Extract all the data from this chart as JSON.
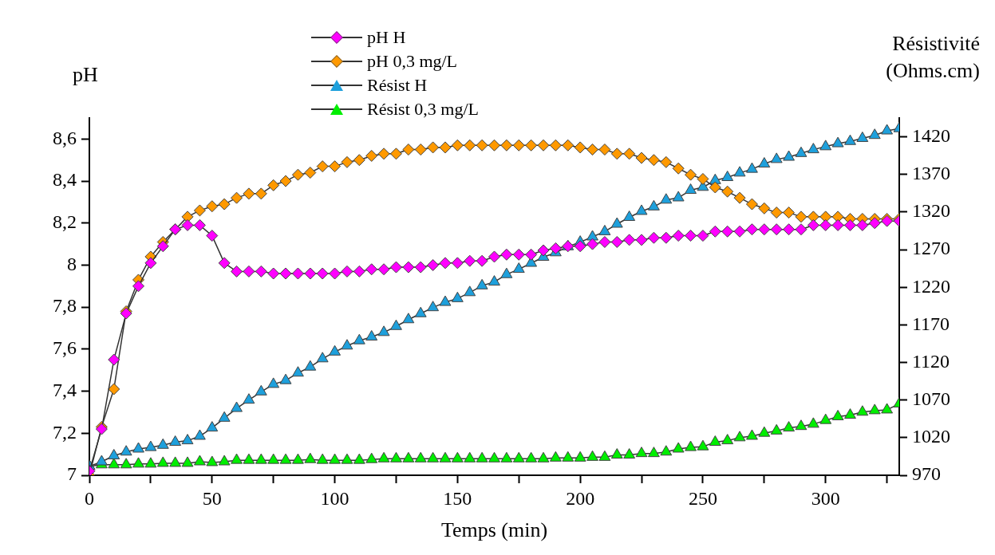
{
  "chart_data": {
    "type": "line",
    "xlabel": "Temps (min)",
    "ylabel": "pH",
    "y2label": "Résistivité (Ohms.cm)",
    "x": [
      0,
      5,
      10,
      15,
      20,
      25,
      30,
      35,
      40,
      45,
      50,
      55,
      60,
      65,
      70,
      75,
      80,
      85,
      90,
      95,
      100,
      105,
      110,
      115,
      120,
      125,
      130,
      135,
      140,
      145,
      150,
      155,
      160,
      165,
      170,
      175,
      180,
      185,
      190,
      195,
      200,
      205,
      210,
      215,
      220,
      225,
      230,
      235,
      240,
      245,
      250,
      255,
      260,
      265,
      270,
      275,
      280,
      285,
      290,
      295,
      300,
      305,
      310,
      315,
      320,
      325,
      330
    ],
    "series": [
      {
        "name": "pH H",
        "color": "#ff00ff",
        "marker": "diamond",
        "values": [
          7.02,
          7.22,
          7.55,
          7.77,
          7.9,
          8.01,
          8.09,
          8.17,
          8.19,
          8.19,
          8.14,
          8.01,
          7.97,
          7.97,
          7.97,
          7.96,
          7.96,
          7.96,
          7.96,
          7.96,
          7.96,
          7.97,
          7.97,
          7.98,
          7.98,
          7.99,
          7.99,
          7.99,
          8.0,
          8.01,
          8.01,
          8.02,
          8.02,
          8.04,
          8.05,
          8.05,
          8.05,
          8.07,
          8.08,
          8.09,
          8.09,
          8.1,
          8.11,
          8.11,
          8.12,
          8.12,
          8.13,
          8.13,
          8.14,
          8.14,
          8.14,
          8.16,
          8.16,
          8.16,
          8.17,
          8.17,
          8.17,
          8.17,
          8.17,
          8.19,
          8.19,
          8.19,
          8.19,
          8.19,
          8.2,
          8.21,
          8.21
        ]
      },
      {
        "name": "pH 0,3 mg/L",
        "color": "#ff9900",
        "marker": "diamond",
        "values": [
          7.0,
          7.23,
          7.41,
          7.78,
          7.93,
          8.04,
          8.11,
          8.17,
          8.23,
          8.26,
          8.28,
          8.29,
          8.32,
          8.34,
          8.34,
          8.38,
          8.4,
          8.43,
          8.44,
          8.47,
          8.47,
          8.49,
          8.5,
          8.52,
          8.53,
          8.53,
          8.55,
          8.55,
          8.56,
          8.56,
          8.57,
          8.57,
          8.57,
          8.57,
          8.57,
          8.57,
          8.57,
          8.57,
          8.57,
          8.57,
          8.56,
          8.55,
          8.55,
          8.53,
          8.53,
          8.51,
          8.5,
          8.49,
          8.46,
          8.43,
          8.41,
          8.37,
          8.35,
          8.32,
          8.29,
          8.27,
          8.25,
          8.25,
          8.23,
          8.23,
          8.23,
          8.23,
          8.22,
          8.22,
          8.22,
          8.22,
          8.22
        ]
      },
      {
        "name": "Résist H",
        "color": "#1ea0dc",
        "marker": "triangle",
        "axis": "y2",
        "values": [
          982,
          988,
          996,
          1001,
          1005,
          1007,
          1010,
          1014,
          1016,
          1022,
          1033,
          1046,
          1059,
          1070,
          1081,
          1091,
          1096,
          1106,
          1114,
          1125,
          1134,
          1142,
          1149,
          1154,
          1160,
          1168,
          1177,
          1185,
          1193,
          1200,
          1205,
          1213,
          1222,
          1227,
          1237,
          1244,
          1252,
          1260,
          1266,
          1274,
          1280,
          1287,
          1294,
          1304,
          1313,
          1321,
          1327,
          1336,
          1339,
          1349,
          1353,
          1362,
          1366,
          1372,
          1377,
          1384,
          1390,
          1393,
          1398,
          1403,
          1407,
          1411,
          1414,
          1418,
          1422,
          1428,
          1431
        ]
      },
      {
        "name": "Résist 0,3 mg/L",
        "color": "#00ee00",
        "marker": "triangle",
        "axis": "y2",
        "values": [
          982,
          984,
          984,
          984,
          985,
          985,
          986,
          986,
          986,
          988,
          987,
          988,
          990,
          990,
          990,
          990,
          990,
          990,
          991,
          990,
          990,
          990,
          990,
          991,
          992,
          992,
          992,
          992,
          992,
          992,
          992,
          992,
          992,
          992,
          992,
          992,
          992,
          992,
          993,
          993,
          993,
          994,
          994,
          997,
          997,
          999,
          999,
          1001,
          1005,
          1007,
          1008,
          1014,
          1016,
          1020,
          1022,
          1026,
          1029,
          1033,
          1035,
          1038,
          1043,
          1048,
          1050,
          1054,
          1056,
          1057,
          1065
        ]
      }
    ],
    "xlim": [
      0,
      330
    ],
    "xticks": [
      0,
      {
        "value": 25,
        "label": null
      },
      50,
      {
        "value": 75,
        "label": null
      },
      100,
      {
        "value": 125,
        "label": null
      },
      150,
      {
        "value": 175,
        "label": null
      },
      200,
      {
        "value": 225,
        "label": null
      },
      250,
      {
        "value": 275,
        "label": null
      },
      300,
      {
        "value": 325,
        "label": null
      }
    ],
    "ylim": [
      7,
      8.7
    ],
    "yticks": [
      7,
      {
        "value": 7.2,
        "label": "7,2"
      },
      {
        "value": 7.4,
        "label": "7,4"
      },
      {
        "value": 7.6,
        "label": "7,6"
      },
      {
        "value": 7.8,
        "label": "7,8"
      },
      8,
      {
        "value": 8.2,
        "label": "8,2"
      },
      {
        "value": 8.4,
        "label": "8,4"
      },
      {
        "value": 8.6,
        "label": "8,6"
      }
    ],
    "y2lim": [
      970,
      1445
    ],
    "y2ticks": [
      970,
      1020,
      1070,
      1120,
      1170,
      1220,
      1270,
      1320,
      1370,
      1420
    ],
    "grid": false,
    "legend": "top",
    "line_style": "solid"
  }
}
